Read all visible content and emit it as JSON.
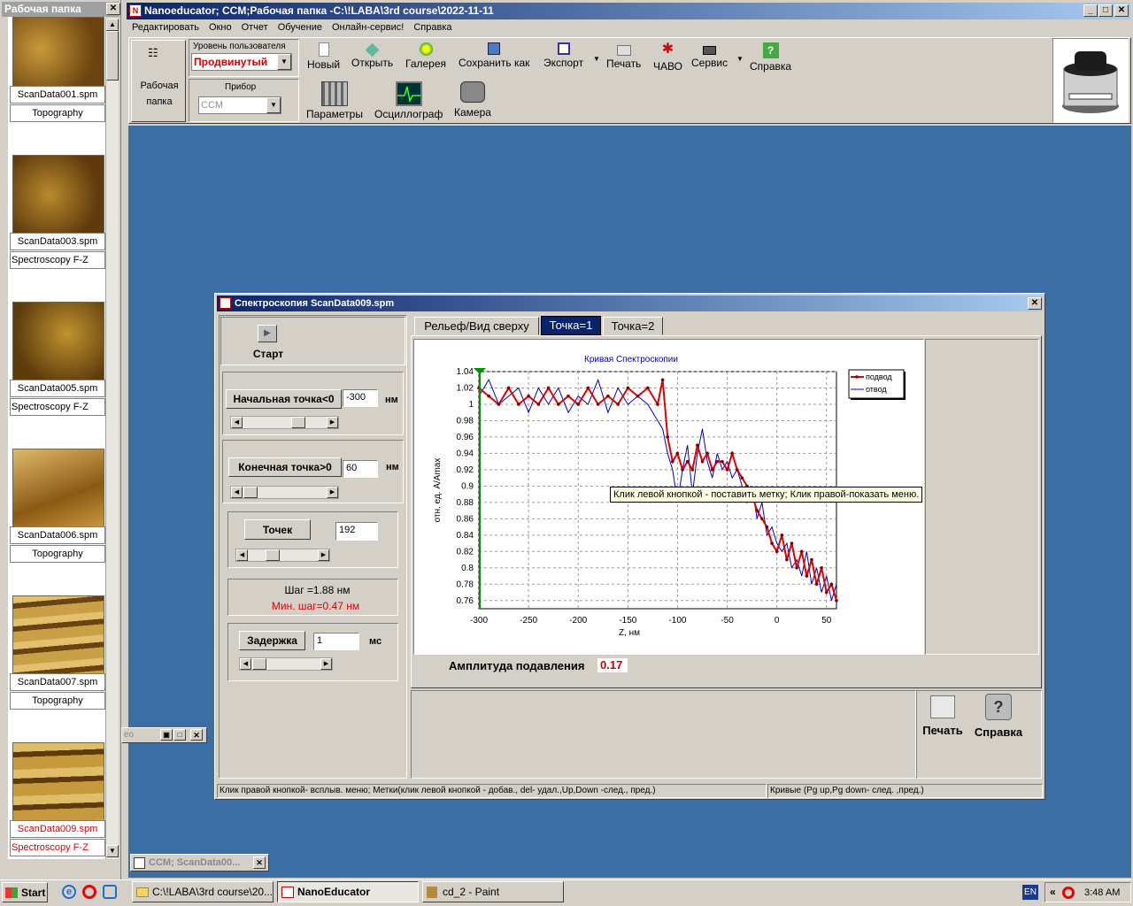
{
  "app": {
    "title": "Nanoeducator; CCM;Рабочая папка -C:\\!LABA\\3rd course\\2022-11-11",
    "menu": [
      "Редактировать",
      "Окно",
      "Отчет",
      "Обучение",
      "Онлайн-сервис!",
      "Справка"
    ]
  },
  "left_panel": {
    "title": "Рабочая папка",
    "items": [
      {
        "file": "ScanData001.spm",
        "type": "Topography",
        "highlight": false
      },
      {
        "file": "ScanData003.spm",
        "type": "Spectroscopy F-Z",
        "highlight": false
      },
      {
        "file": "ScanData005.spm",
        "type": "Spectroscopy F-Z",
        "highlight": false
      },
      {
        "file": "ScanData006.spm",
        "type": "Topography",
        "highlight": false
      },
      {
        "file": "ScanData007.spm",
        "type": "Topography",
        "highlight": false
      },
      {
        "file": "ScanData009.spm",
        "type": "Spectroscopy F-Z",
        "highlight": true
      }
    ]
  },
  "toolbar": {
    "workfolder": "Рабочая\nпапка",
    "user_level_label": "Уровень пользователя",
    "user_level_value": "Продвинутый",
    "device_label": "Прибор",
    "device_value": "CCM",
    "buttons": [
      "Новый",
      "Открыть",
      "Галерея",
      "Сохранить как",
      "Экспорт",
      "Печать",
      "ЧАВО",
      "Сервис",
      "Справка"
    ],
    "row2": [
      "Параметры",
      "Осциллограф",
      "Камера"
    ]
  },
  "spectro": {
    "title": "Спектроскопия ScanData009.spm",
    "start": "Старт",
    "start_point_label": "Начальная точка<0",
    "start_point_value": "-300",
    "start_unit": "нм",
    "end_point_label": "Конечная точка>0",
    "end_point_value": "60",
    "end_unit": "нм",
    "points_label": "Точек",
    "points_value": "192",
    "step": "Шаг =1.88 нм",
    "min_step": "Мин. шаг=0.47 нм",
    "delay_label": "Задержка",
    "delay_value": "1",
    "delay_unit": "мс",
    "tabs": [
      "Рельеф/Вид сверху",
      "Точка=1",
      "Точка=2"
    ],
    "amp_label": "Амплитуда подавления",
    "amp_value": "0.17",
    "print": "Печать",
    "help": "Справка",
    "tooltip": "Клик левой кнопкой - поставить метку; Клик правой-показать меню.",
    "status_left": "Клик правой кнопкой-  всплыв. меню; Метки(клик левой кнопкой - добав., del- удал.,Up,Down -след., пред.)",
    "status_right": "Кривые (Pg up,Pg down- след. ,пред.)"
  },
  "mini_window": {
    "title": "CCM;  ScanData00..."
  },
  "mini_strip": {
    "text": "eo"
  },
  "taskbar": {
    "start": "Start",
    "items": [
      "C:\\!LABA\\3rd course\\20...",
      "NanoEducator",
      "cd_2 - Paint"
    ],
    "lang": "EN",
    "time": "3:48 AM"
  },
  "colors": {
    "titlebar": "#0a246a",
    "desktop": "#3a6ea5",
    "approach": "#e00000",
    "retract": "#0000cc",
    "marker": "#009000"
  },
  "chart_data": {
    "type": "line",
    "title": "Кривая Спектроскопии",
    "xlabel": "Z, нм",
    "ylabel": "отн. ед. A/Amax",
    "xlim": [
      -300,
      60
    ],
    "ylim": [
      0.75,
      1.04
    ],
    "xticks": [
      -300,
      -250,
      -200,
      -150,
      -100,
      -50,
      0,
      50
    ],
    "yticks": [
      0.76,
      0.78,
      0.8,
      0.82,
      0.84,
      0.86,
      0.88,
      0.9,
      0.92,
      0.94,
      0.96,
      0.98,
      1,
      1.02,
      1.04
    ],
    "legend": "top-right",
    "grid": true,
    "series": [
      {
        "name": "подвод",
        "x": [
          -300,
          -290,
          -280,
          -270,
          -260,
          -250,
          -240,
          -230,
          -220,
          -210,
          -200,
          -190,
          -180,
          -170,
          -160,
          -150,
          -140,
          -130,
          -120,
          -115,
          -110,
          -105,
          -100,
          -95,
          -90,
          -85,
          -80,
          -75,
          -70,
          -65,
          -60,
          -55,
          -50,
          -45,
          -40,
          -35,
          -30,
          -25,
          -20,
          -15,
          -10,
          -5,
          0,
          5,
          10,
          15,
          20,
          25,
          30,
          35,
          40,
          45,
          50,
          55,
          60
        ],
        "y": [
          1.02,
          1.01,
          1.0,
          1.02,
          1.0,
          1.01,
          1.0,
          1.02,
          1.0,
          1.01,
          1.0,
          1.02,
          1.0,
          1.01,
          1.0,
          1.02,
          1.01,
          1.02,
          1.0,
          1.03,
          0.96,
          0.93,
          0.94,
          0.92,
          0.93,
          0.92,
          0.95,
          0.93,
          0.94,
          0.92,
          0.93,
          0.93,
          0.92,
          0.94,
          0.92,
          0.91,
          0.9,
          0.89,
          0.87,
          0.86,
          0.85,
          0.83,
          0.82,
          0.84,
          0.81,
          0.83,
          0.8,
          0.82,
          0.79,
          0.81,
          0.78,
          0.8,
          0.77,
          0.78,
          0.76
        ]
      },
      {
        "name": "отвод",
        "x": [
          -300,
          -290,
          -280,
          -270,
          -260,
          -250,
          -240,
          -230,
          -220,
          -210,
          -200,
          -190,
          -180,
          -170,
          -160,
          -150,
          -140,
          -130,
          -120,
          -115,
          -110,
          -105,
          -100,
          -95,
          -90,
          -85,
          -80,
          -75,
          -70,
          -65,
          -60,
          -55,
          -50,
          -45,
          -40,
          -35,
          -30,
          -25,
          -20,
          -15,
          -10,
          -5,
          0,
          5,
          10,
          15,
          20,
          25,
          30,
          35,
          40,
          45,
          50,
          55,
          60
        ],
        "y": [
          1.01,
          1.03,
          1.0,
          1.01,
          1.02,
          0.99,
          1.02,
          1.0,
          1.02,
          0.99,
          1.01,
          1.0,
          1.03,
          0.99,
          1.02,
          1.0,
          1.01,
          1.0,
          0.98,
          0.97,
          0.94,
          0.92,
          0.88,
          0.92,
          0.95,
          0.89,
          0.94,
          0.97,
          0.93,
          0.91,
          0.94,
          0.92,
          0.93,
          0.91,
          0.92,
          0.9,
          0.88,
          0.9,
          0.86,
          0.88,
          0.84,
          0.85,
          0.83,
          0.82,
          0.83,
          0.8,
          0.81,
          0.79,
          0.82,
          0.78,
          0.8,
          0.77,
          0.79,
          0.76,
          0.78
        ]
      }
    ]
  }
}
